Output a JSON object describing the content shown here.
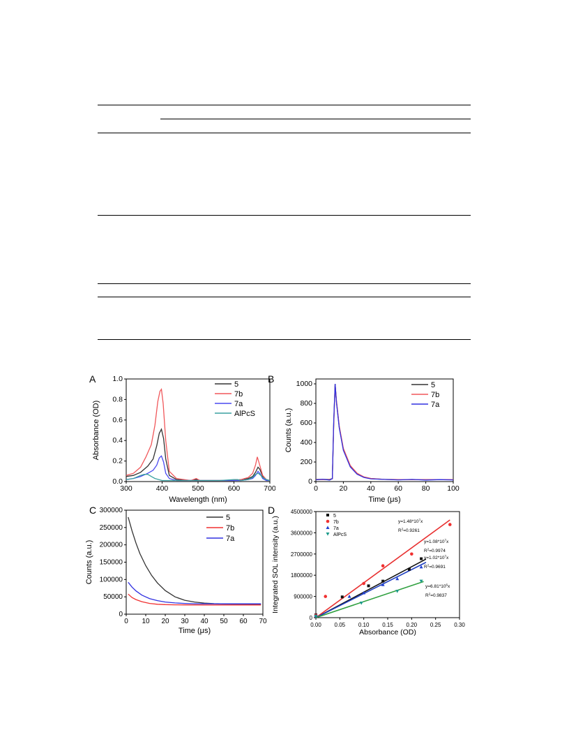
{
  "page": {
    "background": "#ffffff",
    "table_rule_color": "#000000"
  },
  "panels": {
    "A": {
      "letter": "A"
    },
    "B": {
      "letter": "B"
    },
    "C": {
      "letter": "C"
    },
    "D": {
      "letter": "D"
    }
  },
  "chart_data": [
    {
      "id": "A",
      "type": "line",
      "xlabel": "Wavelength (nm)",
      "ylabel": "Absorbance (OD)",
      "xlim": [
        300,
        700
      ],
      "ylim": [
        0,
        1.0
      ],
      "xticks": [
        300,
        400,
        500,
        600,
        700
      ],
      "yticks": [
        0.0,
        0.2,
        0.4,
        0.6,
        0.8,
        1.0
      ],
      "ytick_labels": [
        "0.0",
        "0.2",
        "0.4",
        "0.6",
        "0.8",
        "1.0"
      ],
      "legend_position": "top-right",
      "series": [
        {
          "name": "5",
          "color": "#333333",
          "x": [
            300,
            320,
            340,
            360,
            375,
            385,
            392,
            398,
            404,
            410,
            420,
            440,
            480,
            495,
            505,
            520,
            560,
            600,
            620,
            640,
            652,
            660,
            667,
            672,
            680,
            690,
            700
          ],
          "y": [
            0.05,
            0.06,
            0.09,
            0.15,
            0.22,
            0.35,
            0.47,
            0.51,
            0.42,
            0.22,
            0.06,
            0.02,
            0.01,
            0.02,
            0.01,
            0.01,
            0.01,
            0.01,
            0.02,
            0.03,
            0.05,
            0.09,
            0.14,
            0.12,
            0.05,
            0.02,
            0.01
          ]
        },
        {
          "name": "7b",
          "color": "#f0575a",
          "x": [
            300,
            320,
            340,
            355,
            370,
            380,
            388,
            394,
            398,
            403,
            410,
            420,
            440,
            480,
            495,
            505,
            520,
            560,
            600,
            620,
            640,
            652,
            660,
            665,
            670,
            680,
            690,
            700
          ],
          "y": [
            0.06,
            0.08,
            0.14,
            0.24,
            0.36,
            0.55,
            0.78,
            0.88,
            0.9,
            0.76,
            0.4,
            0.1,
            0.03,
            0.01,
            0.03,
            0.01,
            0.01,
            0.01,
            0.01,
            0.02,
            0.04,
            0.08,
            0.16,
            0.24,
            0.18,
            0.06,
            0.02,
            0.01
          ]
        },
        {
          "name": "7a",
          "color": "#4a4af0",
          "x": [
            300,
            320,
            340,
            360,
            375,
            385,
            392,
            398,
            404,
            410,
            420,
            440,
            480,
            495,
            505,
            520,
            560,
            600,
            620,
            640,
            652,
            660,
            667,
            672,
            680,
            690,
            700
          ],
          "y": [
            0.02,
            0.03,
            0.05,
            0.08,
            0.11,
            0.16,
            0.23,
            0.25,
            0.19,
            0.08,
            0.03,
            0.01,
            0.01,
            0.01,
            0.01,
            0.01,
            0.01,
            0.01,
            0.01,
            0.02,
            0.03,
            0.06,
            0.1,
            0.08,
            0.03,
            0.01,
            0.01
          ]
        },
        {
          "name": "AlPcS",
          "color": "#3aa0a0",
          "x": [
            300,
            320,
            340,
            350,
            360,
            370,
            380,
            400,
            440,
            500,
            560,
            600,
            610,
            620,
            640,
            652,
            660,
            668,
            675,
            680,
            690,
            700
          ],
          "y": [
            0.02,
            0.03,
            0.06,
            0.07,
            0.07,
            0.05,
            0.03,
            0.01,
            0.01,
            0.01,
            0.01,
            0.02,
            0.02,
            0.01,
            0.02,
            0.04,
            0.07,
            0.08,
            0.06,
            0.04,
            0.02,
            0.01
          ]
        }
      ]
    },
    {
      "id": "B",
      "type": "line",
      "xlabel": "Time (μs)",
      "ylabel": "Counts (a.u.)",
      "xlim": [
        0,
        100
      ],
      "ylim": [
        0,
        1050
      ],
      "xticks": [
        0,
        20,
        40,
        60,
        80,
        100
      ],
      "yticks": [
        0,
        200,
        400,
        600,
        800,
        1000
      ],
      "legend_position": "top-right",
      "series": [
        {
          "name": "5",
          "color": "#333333",
          "x": [
            0,
            5,
            10,
            12,
            13,
            14,
            15,
            17,
            20,
            25,
            30,
            35,
            40,
            50,
            60,
            70,
            80,
            90,
            100
          ],
          "y": [
            22,
            22,
            22,
            30,
            600,
            1000,
            820,
            560,
            330,
            160,
            80,
            45,
            30,
            22,
            20,
            20,
            20,
            20,
            20
          ]
        },
        {
          "name": "7b",
          "color": "#f0575a",
          "x": [
            0,
            5,
            10,
            12,
            13,
            14,
            15,
            17,
            20,
            25,
            30,
            35,
            40,
            50,
            60,
            70,
            80,
            90,
            100
          ],
          "y": [
            20,
            20,
            20,
            28,
            580,
            990,
            830,
            570,
            340,
            165,
            85,
            48,
            32,
            22,
            20,
            20,
            20,
            20,
            20
          ]
        },
        {
          "name": "7a",
          "color": "#3030e0",
          "x": [
            0,
            5,
            10,
            12,
            13,
            14,
            15,
            17,
            20,
            25,
            30,
            35,
            40,
            50,
            60,
            70,
            80,
            90,
            100
          ],
          "y": [
            18,
            24,
            16,
            30,
            620,
            1000,
            810,
            550,
            320,
            150,
            75,
            42,
            28,
            22,
            17,
            22,
            16,
            20,
            17
          ]
        }
      ]
    },
    {
      "id": "C",
      "type": "line",
      "xlabel": "Time (μs)",
      "ylabel": "Counts (a.u.)",
      "xlim": [
        0,
        70
      ],
      "ylim": [
        0,
        300000
      ],
      "xticks": [
        0,
        10,
        20,
        30,
        40,
        50,
        60,
        70
      ],
      "yticks": [
        0,
        50000,
        100000,
        150000,
        200000,
        250000,
        300000
      ],
      "legend_position": "top-right",
      "series": [
        {
          "name": "5",
          "color": "#333333",
          "x": [
            1,
            3,
            5,
            7,
            10,
            13,
            16,
            20,
            25,
            30,
            35,
            40,
            45,
            50,
            55,
            60,
            65,
            69
          ],
          "y": [
            280000,
            240000,
            205000,
            175000,
            140000,
            112000,
            90000,
            68000,
            50000,
            40000,
            35000,
            32000,
            30500,
            29500,
            29000,
            28800,
            28600,
            28500
          ]
        },
        {
          "name": "7b",
          "color": "#f03030",
          "x": [
            1,
            3,
            5,
            8,
            12,
            16,
            20,
            25,
            30,
            40,
            50,
            60,
            69
          ],
          "y": [
            58000,
            48000,
            42000,
            36000,
            31000,
            28500,
            27500,
            27000,
            26800,
            26500,
            26500,
            26500,
            26500
          ]
        },
        {
          "name": "7a",
          "color": "#3030e0",
          "x": [
            1,
            3,
            5,
            8,
            12,
            16,
            20,
            25,
            30,
            35,
            40,
            50,
            60,
            69
          ],
          "y": [
            92000,
            78000,
            67000,
            55000,
            45000,
            39000,
            35000,
            32500,
            31000,
            30300,
            30000,
            29800,
            29800,
            29800
          ]
        }
      ]
    },
    {
      "id": "D",
      "type": "scatter",
      "xlabel": "Absorbance (OD)",
      "ylabel": "Integrated SOL intensity (a.u.)",
      "xlim": [
        0,
        0.3
      ],
      "ylim": [
        0,
        4500000
      ],
      "xticks": [
        0.0,
        0.05,
        0.1,
        0.15,
        0.2,
        0.25,
        0.3
      ],
      "xtick_labels": [
        "0.00",
        "0.05",
        "0.10",
        "0.15",
        "0.20",
        "0.25",
        "0.30"
      ],
      "yticks": [
        0,
        900000,
        1800000,
        2700000,
        3600000,
        4500000
      ],
      "legend_position": "top-left",
      "series": [
        {
          "name": "5",
          "color": "#111111",
          "marker": "square",
          "x": [
            0.0,
            0.055,
            0.11,
            0.14,
            0.195,
            0.22
          ],
          "y": [
            120000,
            880000,
            1350000,
            1550000,
            2050000,
            2500000
          ],
          "fit_slope": 10800000,
          "fit_x_end": 0.23,
          "eq_parts": [
            "y=1.08*10",
            "7",
            "x"
          ],
          "r2_text": "R",
          "r2_sup": "2",
          "r2_value": "=0.9974"
        },
        {
          "name": "7b",
          "color": "#f03030",
          "marker": "circle",
          "x": [
            0.0,
            0.02,
            0.1,
            0.14,
            0.2,
            0.28
          ],
          "y": [
            100000,
            900000,
            1450000,
            2200000,
            2700000,
            3950000
          ],
          "fit_slope": 14800000,
          "fit_x_end": 0.28,
          "eq_parts": [
            "y=1.48*10",
            "7",
            "x"
          ],
          "r2_text": "R",
          "r2_sup": "2",
          "r2_value": "=0.9261"
        },
        {
          "name": "7a",
          "color": "#2040d0",
          "marker": "triangle-up",
          "x": [
            0.0,
            0.07,
            0.1,
            0.14,
            0.17,
            0.22
          ],
          "y": [
            80000,
            900000,
            1050000,
            1400000,
            1650000,
            2150000
          ],
          "fit_slope": 10200000,
          "fit_x_end": 0.23,
          "eq_parts": [
            "y=1.02*10",
            "7",
            "x"
          ],
          "r2_text": "R",
          "r2_sup": "2",
          "r2_value": "=0.9691"
        },
        {
          "name": "AlPcS",
          "color": "#1a9a8a",
          "marker": "triangle-down",
          "x": [
            0.0,
            0.095,
            0.17,
            0.22
          ],
          "y": [
            60000,
            620000,
            1120000,
            1550000
          ],
          "fit_slope": 6810000,
          "fit_x_end": 0.225,
          "eq_parts": [
            "y=6.81*10",
            "6",
            "x"
          ],
          "r2_text": "R",
          "r2_sup": "2",
          "r2_value": "=0.9837"
        }
      ],
      "fit_line_colors": {
        "5": "#111111",
        "7b": "#e83030",
        "7a": "#2040c0",
        "AlPcS": "#30a040"
      }
    }
  ]
}
